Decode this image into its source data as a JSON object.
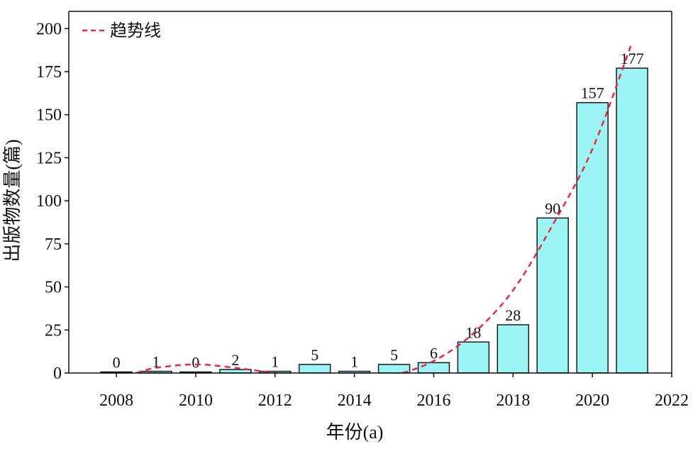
{
  "chart_data": {
    "type": "bar",
    "categories": [
      2008,
      2009,
      2010,
      2011,
      2012,
      2013,
      2014,
      2015,
      2016,
      2017,
      2018,
      2019,
      2020,
      2021
    ],
    "values": [
      0,
      1,
      0,
      2,
      1,
      5,
      1,
      5,
      6,
      18,
      28,
      90,
      157,
      177
    ],
    "xlabel": "年份(a)",
    "ylabel": "出版物数量(篇)",
    "xlim": [
      2006.8,
      2022.0
    ],
    "ylim": [
      0,
      210
    ],
    "xticks": [
      "2008",
      "2010",
      "2012",
      "2014",
      "2016",
      "2018",
      "2020",
      "2022"
    ],
    "yticks": [
      "0",
      "25",
      "50",
      "75",
      "100",
      "125",
      "150",
      "175",
      "200"
    ],
    "grid": false,
    "legend": {
      "position": "top-left",
      "entries": [
        "趋势线"
      ]
    },
    "trendline": {
      "name": "趋势线",
      "style": "dashed",
      "x": [
        2008.5,
        2009,
        2010,
        2011,
        2012,
        2013,
        2014,
        2015,
        2016,
        2017,
        2018,
        2019,
        2020,
        2021
      ],
      "y": [
        0,
        3,
        5,
        3,
        0,
        -2,
        -4,
        -1,
        7,
        23,
        48,
        86,
        130,
        192
      ]
    },
    "colors": {
      "bar_fill": "#9df4f4",
      "bar_stroke": "#1a1a1a",
      "trend": "#e8274a",
      "axis": "#111111"
    }
  }
}
